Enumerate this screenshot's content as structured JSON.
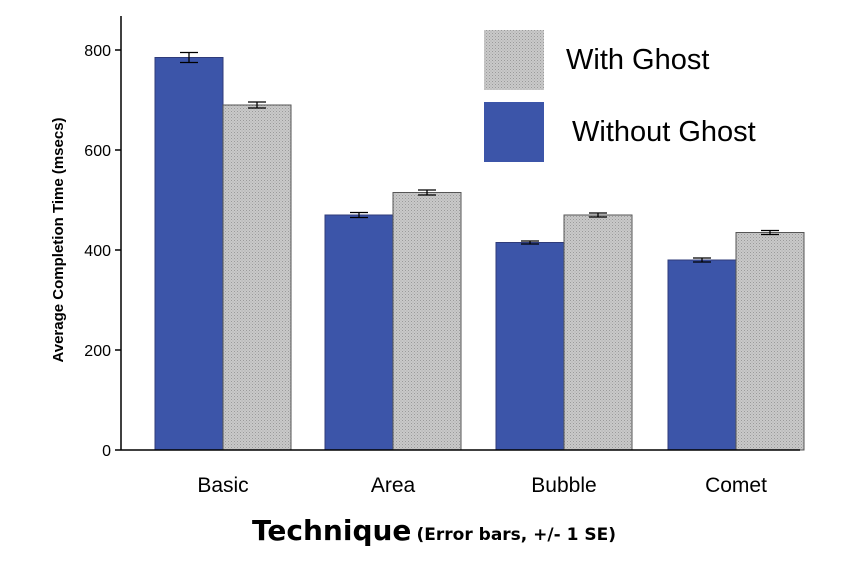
{
  "chart_data": {
    "type": "bar",
    "title": "",
    "xlabel": "Technique",
    "xlabel_note": "(Error bars, +/- 1 SE)",
    "ylabel": "Average Completion Time (msecs)",
    "ylim": [
      0,
      850
    ],
    "yticks": [
      0,
      200,
      400,
      600,
      800
    ],
    "grid": false,
    "legend_position": "top-right",
    "categories": [
      "Basic",
      "Area",
      "Bubble",
      "Comet"
    ],
    "series": [
      {
        "name": "Without Ghost",
        "color": "#3c55a9",
        "values": [
          785,
          470,
          415,
          380
        ],
        "se": [
          10,
          5,
          3,
          4
        ]
      },
      {
        "name": "With Ghost",
        "color": "#c4c4c4",
        "values": [
          690,
          515,
          470,
          435
        ],
        "se": [
          6,
          5,
          4,
          4
        ]
      }
    ],
    "legend_order": [
      "With Ghost",
      "Without Ghost"
    ]
  }
}
